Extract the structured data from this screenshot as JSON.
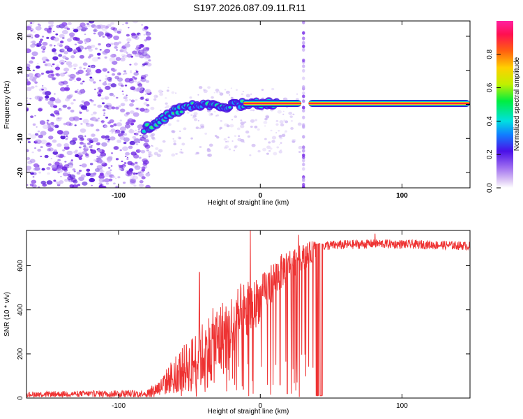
{
  "title": "S197.2026.087.09.11.R11",
  "colors": {
    "line": "#ee3333",
    "spec_low": "#c8a8f0",
    "spec_mid": "#5a10e0",
    "spec_high": "#ff2040"
  },
  "chart_data": [
    {
      "type": "heatmap",
      "name": "spectrogram",
      "xlabel": "Height of straight line (km)",
      "ylabel": "Frequency (Hz)",
      "xlim": [
        -165,
        148
      ],
      "ylim": [
        -24.5,
        24.5
      ],
      "xticks": [
        -100,
        0,
        100
      ],
      "yticks": [
        -20,
        -10,
        0,
        10,
        20
      ],
      "colorbar": {
        "label": "Normalized spectral amplitude",
        "ticks": [
          0.0,
          0.2,
          0.4,
          0.6,
          0.8
        ],
        "range": [
          0,
          1
        ]
      },
      "noise_region_x": [
        -165,
        -80
      ],
      "signal_track": [
        {
          "x": -82,
          "y": -7
        },
        {
          "x": -75,
          "y": -6
        },
        {
          "x": -68,
          "y": -4
        },
        {
          "x": -60,
          "y": -2
        },
        {
          "x": -52,
          "y": -1
        },
        {
          "x": -45,
          "y": 0
        },
        {
          "x": -38,
          "y": -0.5
        },
        {
          "x": -30,
          "y": -1
        },
        {
          "x": -22,
          "y": -0.5
        },
        {
          "x": -15,
          "y": 0
        },
        {
          "x": -8,
          "y": 0.5
        },
        {
          "x": 0,
          "y": 0.3
        },
        {
          "x": 10,
          "y": 0.3
        },
        {
          "x": 30,
          "y": 0.3
        },
        {
          "x": 60,
          "y": 0.3
        },
        {
          "x": 100,
          "y": 0.3
        },
        {
          "x": 148,
          "y": 0.3
        }
      ],
      "gaps_x": [
        [
          29,
          34
        ]
      ]
    },
    {
      "type": "line",
      "name": "snr",
      "xlabel": "Height of straight line (km)",
      "ylabel": "SNR (10 * v/v)",
      "xlim": [
        -165,
        148
      ],
      "ylim": [
        0,
        760
      ],
      "xticks": [
        -100,
        0,
        100
      ],
      "yticks": [
        0,
        200,
        400,
        600
      ],
      "envelope": [
        {
          "x": -165,
          "y": 20,
          "noise": 12
        },
        {
          "x": -80,
          "y": 25,
          "noise": 15
        },
        {
          "x": -70,
          "y": 60,
          "noise": 40
        },
        {
          "x": -60,
          "y": 130,
          "noise": 90
        },
        {
          "x": -50,
          "y": 170,
          "noise": 120
        },
        {
          "x": -40,
          "y": 230,
          "noise": 160
        },
        {
          "x": -30,
          "y": 290,
          "noise": 180
        },
        {
          "x": -20,
          "y": 350,
          "noise": 170
        },
        {
          "x": -10,
          "y": 420,
          "noise": 150
        },
        {
          "x": 0,
          "y": 470,
          "noise": 100
        },
        {
          "x": 10,
          "y": 560,
          "noise": 90
        },
        {
          "x": 20,
          "y": 620,
          "noise": 70
        },
        {
          "x": 30,
          "y": 650,
          "noise": 60
        },
        {
          "x": 42,
          "y": 690,
          "noise": 45
        },
        {
          "x": 80,
          "y": 700,
          "noise": 40
        },
        {
          "x": 120,
          "y": 695,
          "noise": 40
        },
        {
          "x": 148,
          "y": 690,
          "noise": 40
        }
      ],
      "spikes": [
        {
          "x": -7,
          "y": 760
        },
        {
          "x": -43,
          "y": 570
        },
        {
          "x": 27,
          "y": 740
        },
        {
          "x": 81,
          "y": 745
        }
      ],
      "dropouts": [
        {
          "x": -22,
          "y": 80
        },
        {
          "x": -18,
          "y": 60
        },
        {
          "x": -12,
          "y": 40
        },
        {
          "x": -5,
          "y": 20
        },
        {
          "x": 5,
          "y": 60
        },
        {
          "x": 9,
          "y": 60
        },
        {
          "x": 14,
          "y": 60
        },
        {
          "x": 19,
          "y": 20
        },
        {
          "x": 22,
          "y": 20
        }
      ],
      "zero_band_x": [
        39,
        44
      ]
    }
  ]
}
